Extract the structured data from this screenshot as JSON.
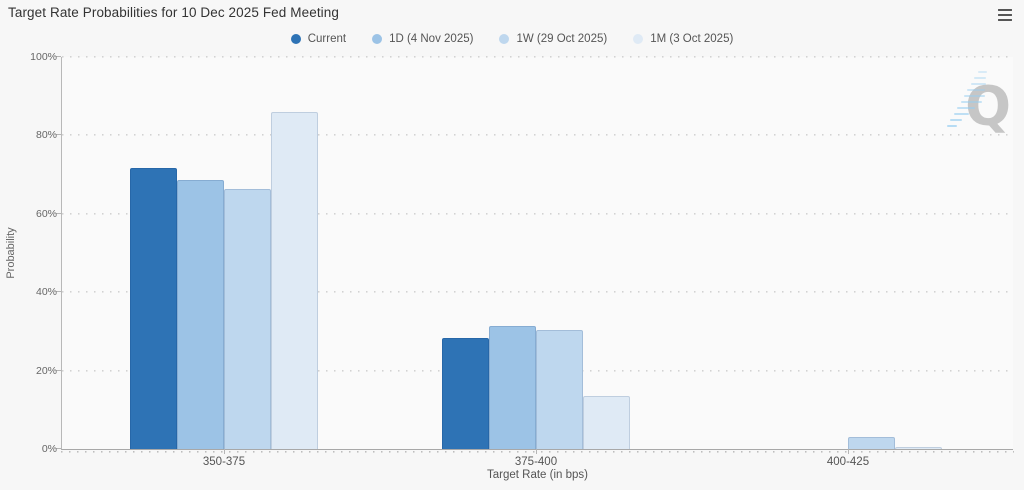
{
  "header": {
    "menu_icon": "hamburger-icon"
  },
  "watermark": {
    "letter": "Q"
  },
  "chart_data": {
    "type": "bar",
    "title": "Target Rate Probabilities for 10 Dec 2025 Fed Meeting",
    "xlabel": "Target Rate (in bps)",
    "ylabel": "Probability",
    "ylim": [
      0,
      100
    ],
    "ytick_step": 20,
    "ytick_labels": [
      "0%",
      "20%",
      "40%",
      "60%",
      "80%",
      "100%"
    ],
    "grid": "horizontal-dotted",
    "legend_position": "top-center",
    "categories": [
      "350-375",
      "375-400",
      "400-425"
    ],
    "series": [
      {
        "name": "Current",
        "color": "#2e73b5",
        "values": [
          71.7,
          28.2,
          0
        ]
      },
      {
        "name": "1D (4 Nov 2025)",
        "color": "#9cc3e6",
        "values": [
          68.5,
          31.3,
          0
        ]
      },
      {
        "name": "1W (29 Oct 2025)",
        "color": "#bed7ee",
        "values": [
          66.3,
          30.4,
          3.0
        ]
      },
      {
        "name": "1M (3 Oct 2025)",
        "color": "#dfeaf5",
        "values": [
          86.1,
          13.4,
          0.5
        ]
      }
    ]
  }
}
